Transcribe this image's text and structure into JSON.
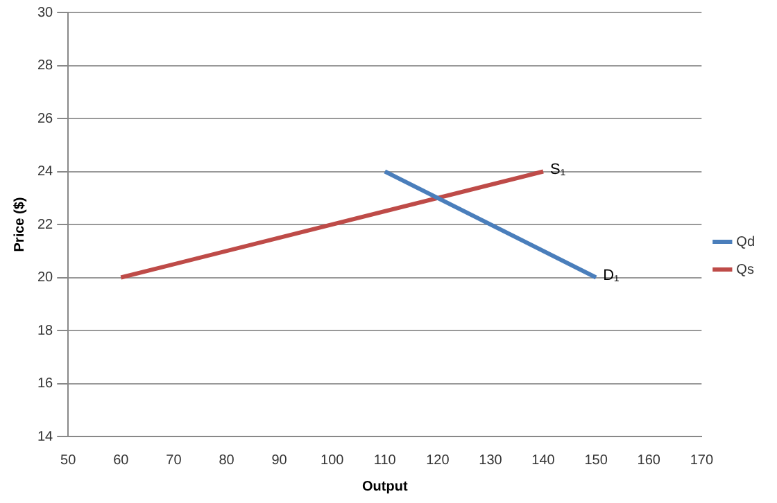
{
  "chart_data": {
    "type": "line",
    "xlabel": "Output",
    "ylabel": "Price ($)",
    "series": [
      {
        "name": "Qd",
        "color": "#4a7ebb",
        "x": [
          110,
          150
        ],
        "values": [
          24,
          20
        ]
      },
      {
        "name": "Qs",
        "color": "#be4b48",
        "x": [
          60,
          140
        ],
        "values": [
          20,
          24
        ]
      }
    ],
    "xlim": [
      50,
      170
    ],
    "xticks": [
      50,
      60,
      70,
      80,
      90,
      100,
      110,
      120,
      130,
      140,
      150,
      160,
      170
    ],
    "ylim": [
      14,
      30
    ],
    "yticks": [
      14,
      16,
      18,
      20,
      22,
      24,
      26,
      28,
      30
    ],
    "annotations": [
      {
        "text": "S₁",
        "x": 140,
        "y": 24
      },
      {
        "text": "D₁",
        "x": 150,
        "y": 20
      }
    ],
    "grid": "y",
    "legend": "right",
    "marker": "none",
    "line_style": "solid"
  }
}
